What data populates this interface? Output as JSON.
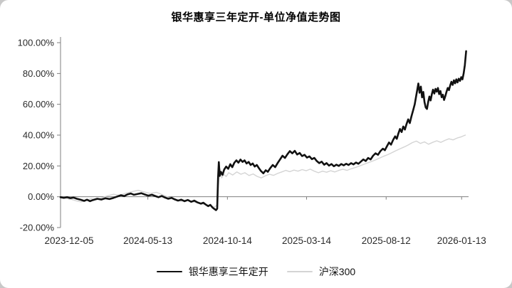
{
  "page": {
    "background_color": "#c8c8c8",
    "card_color": "#ffffff"
  },
  "chart_data": {
    "type": "line",
    "title": "银华惠享三年定开-单位净值走势图",
    "xlabel": "",
    "ylabel": "",
    "ylim": [
      -20,
      100
    ],
    "grid": false,
    "legend_position": "bottom",
    "y_ticks": [
      {
        "value": 100,
        "label": "100.00%"
      },
      {
        "value": 80,
        "label": "80.00%"
      },
      {
        "value": 60,
        "label": "60.00%"
      },
      {
        "value": 40,
        "label": "40.00%"
      },
      {
        "value": 20,
        "label": "20.00%"
      },
      {
        "value": 0,
        "label": "0.00%"
      },
      {
        "value": -20,
        "label": "-20.00%"
      }
    ],
    "x_ticks": [
      {
        "pos": 0.021,
        "label": "2023-12-05"
      },
      {
        "pos": 0.214,
        "label": "2024-05-13"
      },
      {
        "pos": 0.409,
        "label": "2024-10-14"
      },
      {
        "pos": 0.603,
        "label": "2025-03-14"
      },
      {
        "pos": 0.798,
        "label": "2025-08-12"
      },
      {
        "pos": 0.983,
        "label": "2026-01-13"
      }
    ],
    "legend": [
      {
        "name": "银华惠享三年定开",
        "color": "#111111",
        "width": 2.6
      },
      {
        "name": "沪深300",
        "color": "#d4d4d4",
        "width": 1.4
      }
    ],
    "series": [
      {
        "name": "沪深300",
        "color": "#d4d4d4",
        "width": 1.4,
        "points": [
          [
            0.0,
            -0.2
          ],
          [
            0.012,
            -0.8
          ],
          [
            0.025,
            -1.6
          ],
          [
            0.038,
            -2.6
          ],
          [
            0.05,
            -3.4
          ],
          [
            0.062,
            -2.4
          ],
          [
            0.075,
            -1.2
          ],
          [
            0.088,
            -2.0
          ],
          [
            0.1,
            -0.8
          ],
          [
            0.115,
            0.6
          ],
          [
            0.13,
            1.6
          ],
          [
            0.145,
            0.9
          ],
          [
            0.16,
            2.3
          ],
          [
            0.175,
            3.3
          ],
          [
            0.19,
            4.2
          ],
          [
            0.205,
            3.1
          ],
          [
            0.22,
            2.1
          ],
          [
            0.235,
            2.9
          ],
          [
            0.25,
            1.3
          ],
          [
            0.265,
            -0.4
          ],
          [
            0.28,
            -1.7
          ],
          [
            0.295,
            -2.9
          ],
          [
            0.31,
            -2.1
          ],
          [
            0.325,
            -3.3
          ],
          [
            0.34,
            -4.3
          ],
          [
            0.355,
            -5.1
          ],
          [
            0.368,
            -5.9
          ],
          [
            0.378,
            -6.6
          ],
          [
            0.384,
            -5.2
          ],
          [
            0.388,
            10.5
          ],
          [
            0.391,
            18.0
          ],
          [
            0.395,
            12.2
          ],
          [
            0.4,
            14.6
          ],
          [
            0.406,
            13.1
          ],
          [
            0.412,
            15.6
          ],
          [
            0.422,
            14.1
          ],
          [
            0.432,
            16.1
          ],
          [
            0.442,
            14.6
          ],
          [
            0.452,
            15.6
          ],
          [
            0.462,
            13.8
          ],
          [
            0.472,
            14.8
          ],
          [
            0.482,
            13.2
          ],
          [
            0.492,
            12.2
          ],
          [
            0.502,
            13.6
          ],
          [
            0.512,
            14.6
          ],
          [
            0.522,
            13.9
          ],
          [
            0.532,
            15.1
          ],
          [
            0.542,
            16.1
          ],
          [
            0.552,
            17.1
          ],
          [
            0.562,
            16.3
          ],
          [
            0.572,
            17.3
          ],
          [
            0.582,
            16.6
          ],
          [
            0.592,
            17.6
          ],
          [
            0.602,
            16.9
          ],
          [
            0.612,
            17.9
          ],
          [
            0.622,
            16.6
          ],
          [
            0.632,
            15.6
          ],
          [
            0.642,
            16.6
          ],
          [
            0.652,
            15.9
          ],
          [
            0.662,
            16.9
          ],
          [
            0.672,
            16.1
          ],
          [
            0.682,
            17.1
          ],
          [
            0.692,
            17.9
          ],
          [
            0.702,
            17.1
          ],
          [
            0.712,
            18.1
          ],
          [
            0.722,
            18.9
          ],
          [
            0.732,
            19.9
          ],
          [
            0.742,
            20.9
          ],
          [
            0.752,
            21.9
          ],
          [
            0.762,
            22.9
          ],
          [
            0.772,
            23.9
          ],
          [
            0.782,
            25.1
          ],
          [
            0.792,
            26.3
          ],
          [
            0.802,
            27.3
          ],
          [
            0.812,
            28.6
          ],
          [
            0.822,
            29.9
          ],
          [
            0.832,
            31.1
          ],
          [
            0.842,
            32.3
          ],
          [
            0.852,
            33.6
          ],
          [
            0.862,
            35.1
          ],
          [
            0.872,
            36.1
          ],
          [
            0.882,
            34.6
          ],
          [
            0.892,
            35.6
          ],
          [
            0.902,
            34.1
          ],
          [
            0.912,
            35.3
          ],
          [
            0.922,
            36.3
          ],
          [
            0.932,
            35.3
          ],
          [
            0.942,
            36.6
          ],
          [
            0.952,
            37.6
          ],
          [
            0.962,
            36.9
          ],
          [
            0.972,
            38.1
          ],
          [
            0.982,
            38.9
          ],
          [
            0.992,
            40.0
          ]
        ]
      },
      {
        "name": "银华惠享三年定开",
        "color": "#111111",
        "width": 2.6,
        "points": [
          [
            0.0,
            -0.3
          ],
          [
            0.008,
            -0.7
          ],
          [
            0.016,
            -0.3
          ],
          [
            0.024,
            -0.9
          ],
          [
            0.032,
            -0.5
          ],
          [
            0.04,
            -1.3
          ],
          [
            0.05,
            -2.0
          ],
          [
            0.058,
            -2.7
          ],
          [
            0.065,
            -1.9
          ],
          [
            0.072,
            -2.9
          ],
          [
            0.08,
            -2.1
          ],
          [
            0.09,
            -1.3
          ],
          [
            0.1,
            -1.8
          ],
          [
            0.11,
            -1.0
          ],
          [
            0.12,
            -1.5
          ],
          [
            0.13,
            -0.7
          ],
          [
            0.14,
            0.2
          ],
          [
            0.148,
            1.0
          ],
          [
            0.156,
            0.4
          ],
          [
            0.164,
            1.5
          ],
          [
            0.172,
            2.1
          ],
          [
            0.18,
            1.3
          ],
          [
            0.19,
            1.9
          ],
          [
            0.198,
            2.3
          ],
          [
            0.206,
            1.5
          ],
          [
            0.215,
            0.7
          ],
          [
            0.224,
            1.3
          ],
          [
            0.232,
            0.5
          ],
          [
            0.24,
            -0.3
          ],
          [
            0.248,
            0.5
          ],
          [
            0.256,
            -0.5
          ],
          [
            0.264,
            -1.3
          ],
          [
            0.272,
            -0.7
          ],
          [
            0.28,
            -1.7
          ],
          [
            0.288,
            -2.5
          ],
          [
            0.296,
            -1.9
          ],
          [
            0.304,
            -2.9
          ],
          [
            0.312,
            -2.1
          ],
          [
            0.32,
            -3.3
          ],
          [
            0.328,
            -2.5
          ],
          [
            0.336,
            -3.7
          ],
          [
            0.344,
            -4.5
          ],
          [
            0.35,
            -3.9
          ],
          [
            0.356,
            -5.1
          ],
          [
            0.362,
            -6.1
          ],
          [
            0.367,
            -5.3
          ],
          [
            0.372,
            -6.9
          ],
          [
            0.377,
            -7.9
          ],
          [
            0.381,
            -8.7
          ],
          [
            0.384,
            -7.7
          ],
          [
            0.386,
            12.0
          ],
          [
            0.388,
            22.5
          ],
          [
            0.39,
            13.5
          ],
          [
            0.393,
            16.2
          ],
          [
            0.397,
            14.2
          ],
          [
            0.401,
            17.6
          ],
          [
            0.406,
            19.6
          ],
          [
            0.411,
            18.1
          ],
          [
            0.416,
            21.1
          ],
          [
            0.421,
            19.2
          ],
          [
            0.426,
            22.1
          ],
          [
            0.431,
            23.6
          ],
          [
            0.436,
            22.1
          ],
          [
            0.441,
            24.1
          ],
          [
            0.446,
            22.6
          ],
          [
            0.451,
            23.6
          ],
          [
            0.456,
            21.6
          ],
          [
            0.461,
            22.6
          ],
          [
            0.466,
            20.6
          ],
          [
            0.471,
            21.6
          ],
          [
            0.476,
            19.6
          ],
          [
            0.481,
            20.6
          ],
          [
            0.486,
            18.6
          ],
          [
            0.491,
            16.8
          ],
          [
            0.497,
            15.2
          ],
          [
            0.503,
            17.2
          ],
          [
            0.508,
            16.2
          ],
          [
            0.514,
            18.6
          ],
          [
            0.52,
            20.6
          ],
          [
            0.526,
            19.2
          ],
          [
            0.532,
            21.8
          ],
          [
            0.538,
            24.2
          ],
          [
            0.544,
            26.6
          ],
          [
            0.55,
            25.2
          ],
          [
            0.556,
            27.6
          ],
          [
            0.562,
            29.6
          ],
          [
            0.568,
            28.2
          ],
          [
            0.574,
            29.8
          ],
          [
            0.58,
            27.4
          ],
          [
            0.586,
            28.4
          ],
          [
            0.592,
            26.4
          ],
          [
            0.598,
            27.2
          ],
          [
            0.604,
            25.4
          ],
          [
            0.61,
            26.2
          ],
          [
            0.616,
            24.4
          ],
          [
            0.622,
            25.2
          ],
          [
            0.628,
            23.2
          ],
          [
            0.634,
            21.8
          ],
          [
            0.64,
            22.8
          ],
          [
            0.646,
            20.8
          ],
          [
            0.652,
            21.8
          ],
          [
            0.658,
            20.2
          ],
          [
            0.664,
            21.2
          ],
          [
            0.67,
            19.8
          ],
          [
            0.676,
            20.8
          ],
          [
            0.682,
            20.0
          ],
          [
            0.688,
            21.2
          ],
          [
            0.694,
            20.4
          ],
          [
            0.7,
            21.4
          ],
          [
            0.706,
            20.6
          ],
          [
            0.712,
            21.8
          ],
          [
            0.718,
            21.0
          ],
          [
            0.724,
            22.2
          ],
          [
            0.73,
            21.4
          ],
          [
            0.736,
            22.8
          ],
          [
            0.742,
            24.2
          ],
          [
            0.748,
            23.2
          ],
          [
            0.754,
            25.2
          ],
          [
            0.76,
            24.2
          ],
          [
            0.766,
            26.6
          ],
          [
            0.772,
            28.2
          ],
          [
            0.778,
            27.2
          ],
          [
            0.784,
            29.6
          ],
          [
            0.79,
            31.2
          ],
          [
            0.795,
            30.2
          ],
          [
            0.8,
            32.8
          ],
          [
            0.805,
            35.2
          ],
          [
            0.81,
            33.8
          ],
          [
            0.815,
            36.8
          ],
          [
            0.82,
            39.2
          ],
          [
            0.824,
            37.6
          ],
          [
            0.828,
            41.0
          ],
          [
            0.832,
            44.0
          ],
          [
            0.836,
            42.0
          ],
          [
            0.84,
            45.6
          ],
          [
            0.844,
            43.6
          ],
          [
            0.848,
            47.2
          ],
          [
            0.852,
            50.2
          ],
          [
            0.856,
            47.8
          ],
          [
            0.86,
            52.2
          ],
          [
            0.864,
            56.0
          ],
          [
            0.868,
            60.0
          ],
          [
            0.871,
            64.5
          ],
          [
            0.874,
            69.0
          ],
          [
            0.877,
            73.5
          ],
          [
            0.88,
            67.5
          ],
          [
            0.883,
            71.5
          ],
          [
            0.886,
            64.5
          ],
          [
            0.889,
            68.0
          ],
          [
            0.892,
            61.5
          ],
          [
            0.895,
            58.0
          ],
          [
            0.898,
            57.0
          ],
          [
            0.901,
            61.5
          ],
          [
            0.904,
            65.0
          ],
          [
            0.907,
            62.5
          ],
          [
            0.91,
            66.5
          ],
          [
            0.913,
            69.5
          ],
          [
            0.916,
            67.0
          ],
          [
            0.919,
            70.0
          ],
          [
            0.922,
            68.2
          ],
          [
            0.925,
            70.6
          ],
          [
            0.928,
            66.6
          ],
          [
            0.931,
            68.6
          ],
          [
            0.934,
            64.6
          ],
          [
            0.937,
            66.2
          ],
          [
            0.94,
            62.8
          ],
          [
            0.943,
            65.2
          ],
          [
            0.946,
            68.2
          ],
          [
            0.949,
            70.6
          ],
          [
            0.952,
            69.2
          ],
          [
            0.955,
            72.2
          ],
          [
            0.958,
            74.6
          ],
          [
            0.961,
            72.6
          ],
          [
            0.964,
            75.6
          ],
          [
            0.967,
            73.6
          ],
          [
            0.97,
            76.2
          ],
          [
            0.973,
            74.2
          ],
          [
            0.976,
            76.6
          ],
          [
            0.979,
            75.2
          ],
          [
            0.982,
            77.6
          ],
          [
            0.985,
            76.2
          ],
          [
            0.988,
            80.0
          ],
          [
            0.991,
            85.5
          ],
          [
            0.994,
            94.5
          ]
        ]
      }
    ]
  }
}
